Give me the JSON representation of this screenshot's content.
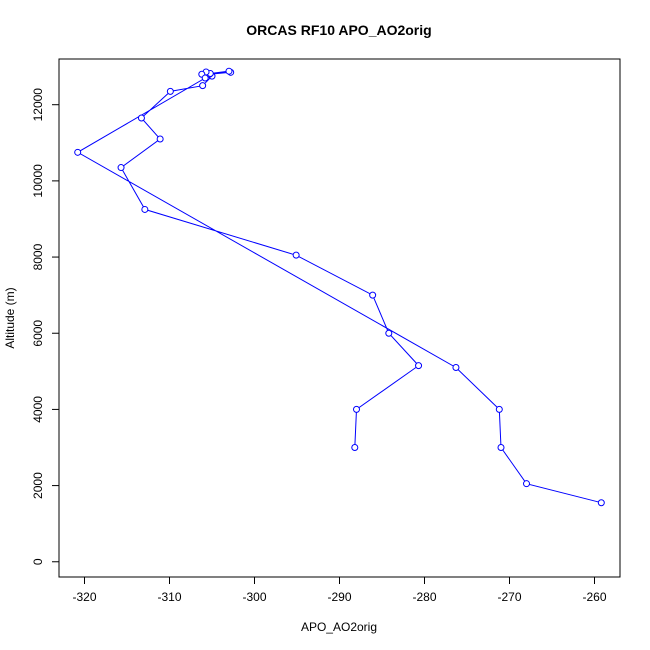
{
  "chart_data": {
    "type": "line",
    "title": "ORCAS RF10 APO_AO2orig",
    "xlabel": "APO_AO2orig",
    "ylabel": "Altitude (m)",
    "xlim": [
      -323,
      -257
    ],
    "ylim": [
      -400,
      13200
    ],
    "xticks": [
      -320,
      -310,
      -300,
      -290,
      -280,
      -270,
      -260
    ],
    "yticks": [
      0,
      2000,
      4000,
      6000,
      8000,
      10000,
      12000
    ],
    "grid": false,
    "legend": "none",
    "colors": {
      "series": "#0000ff",
      "axes": "#000000"
    },
    "series": [
      {
        "marker": "open-circle",
        "x": [
          -288.2,
          -288.0,
          -280.7,
          -284.2,
          -286.1,
          -295.1,
          -312.9,
          -315.7,
          -311.1,
          -313.3,
          -309.9,
          -306.1,
          -305.0,
          -305.3,
          -302.8,
          -303.0,
          -305.2,
          -305.7,
          -306.2,
          -305.8,
          -320.8,
          -276.3,
          -271.2,
          -271.0,
          -268.0,
          -259.2
        ],
        "y": [
          3000,
          4000,
          5150,
          6000,
          7000,
          8050,
          9250,
          10350,
          11100,
          11650,
          12350,
          12500,
          12750,
          12800,
          12850,
          12880,
          12820,
          12860,
          12800,
          12700,
          10750,
          5100,
          4000,
          3000,
          2050,
          1550
        ]
      }
    ]
  }
}
